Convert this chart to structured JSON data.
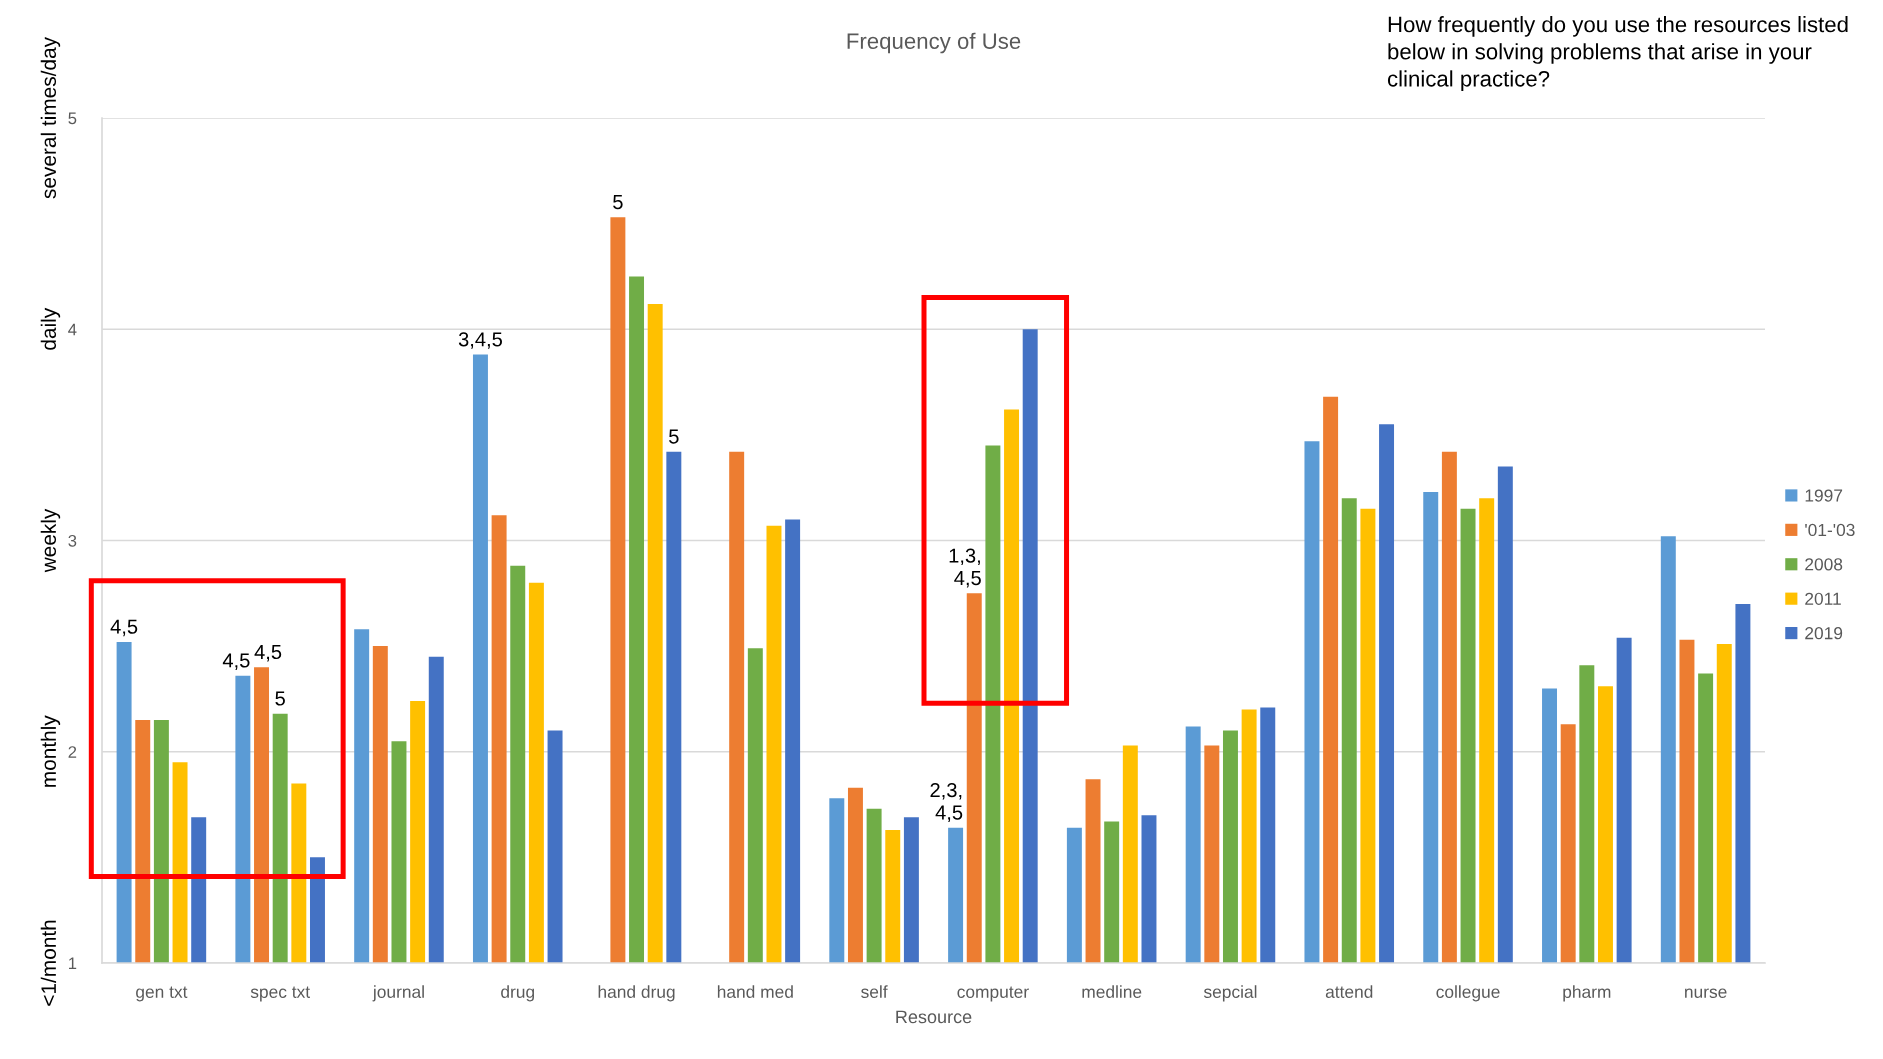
{
  "chart_data": {
    "type": "bar",
    "title": "Frequency of Use",
    "xlabel": "Resource",
    "categories": [
      "gen txt",
      "spec txt",
      "journal",
      "drug",
      "hand drug",
      "hand med",
      "self",
      "computer",
      "medline",
      "sepcial",
      "attend",
      "collegue",
      "pharm",
      "nurse"
    ],
    "series": [
      {
        "name": "1997",
        "color": "#5b9bd5",
        "values": [
          2.52,
          2.36,
          2.58,
          3.88,
          null,
          null,
          1.78,
          1.64,
          1.64,
          2.12,
          3.47,
          3.23,
          2.3,
          3.02
        ]
      },
      {
        "name": "'01-'03",
        "color": "#ed7d31",
        "values": [
          2.15,
          2.4,
          2.5,
          3.12,
          4.53,
          3.42,
          1.83,
          2.75,
          1.87,
          2.03,
          3.68,
          3.42,
          2.13,
          2.53
        ]
      },
      {
        "name": "2008",
        "color": "#70ad47",
        "values": [
          2.15,
          2.18,
          2.05,
          2.88,
          4.25,
          2.49,
          1.73,
          3.45,
          1.67,
          2.1,
          3.2,
          3.15,
          2.41,
          2.37
        ]
      },
      {
        "name": "2011",
        "color": "#ffc000",
        "values": [
          1.95,
          1.85,
          2.24,
          2.8,
          4.12,
          3.07,
          1.63,
          3.62,
          2.03,
          2.2,
          3.15,
          3.2,
          2.31,
          2.51
        ]
      },
      {
        "name": "2019",
        "color": "#4472c4",
        "values": [
          1.69,
          1.5,
          2.45,
          2.1,
          3.42,
          3.1,
          1.69,
          4.0,
          1.7,
          2.21,
          3.55,
          3.35,
          2.54,
          2.7
        ]
      }
    ],
    "ylim": [
      1,
      5
    ],
    "yticks": [
      1,
      2,
      3,
      4,
      5
    ],
    "grid": "y",
    "legend": "right",
    "annotations": [
      "several times/day",
      "daily",
      "weekly",
      "monthly",
      "<1/month",
      "4,5",
      "4,5",
      "4,5",
      "5",
      "3,4,5",
      "5",
      "5",
      "2,3,\n4,5",
      "1,3,\n4,5",
      "How frequently do you use the resources listed below in solving problems that arise in your clinical practice?"
    ]
  }
}
